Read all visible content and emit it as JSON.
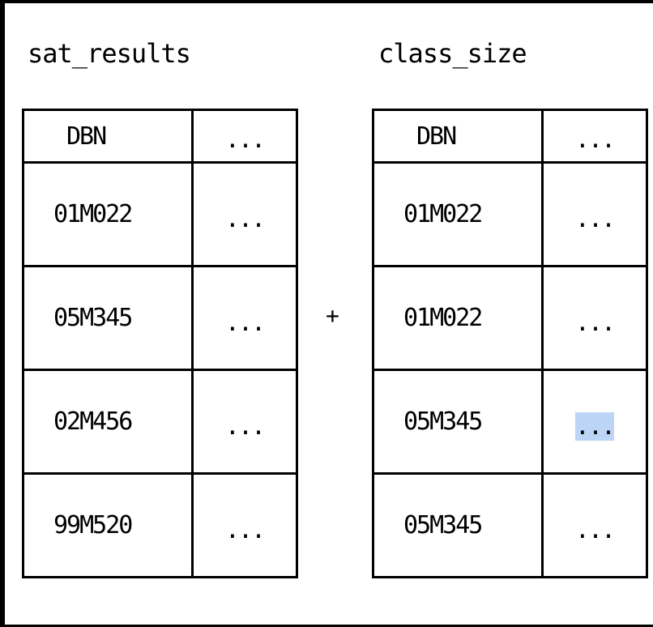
{
  "left_table": {
    "title": "sat_results",
    "headers": [
      "DBN",
      "..."
    ],
    "rows": [
      [
        "01M022",
        "..."
      ],
      [
        "05M345",
        "..."
      ],
      [
        "02M456",
        "..."
      ],
      [
        "99M520",
        "..."
      ]
    ]
  },
  "operator": "+",
  "right_table": {
    "title": "class_size",
    "headers": [
      "DBN",
      "..."
    ],
    "rows": [
      [
        "01M022",
        "..."
      ],
      [
        "01M022",
        "..."
      ],
      [
        "05M345",
        "..."
      ],
      [
        "05M345",
        "..."
      ]
    ]
  },
  "colors": {
    "selection_highlight": "#bcd4f5",
    "border": "#000000"
  }
}
